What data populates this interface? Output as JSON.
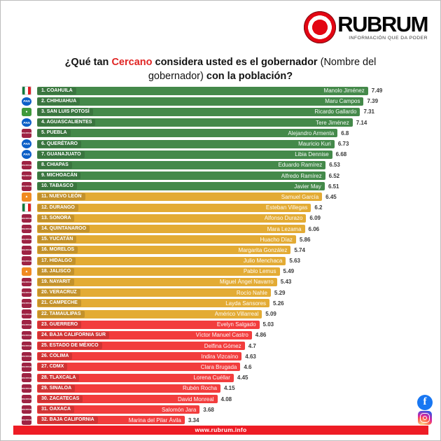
{
  "header": {
    "brand": "RUBRUM",
    "tagline": "INFORMACIÓN QUE DA PODER",
    "title_parts": {
      "q1": "¿Qué tan",
      "highlight": "Cercano",
      "q2": "considera usted es el gobernador",
      "paren": "(Nombre del gobernador)",
      "q3": "con la población?"
    }
  },
  "chart_data": {
    "type": "bar",
    "orientation": "horizontal",
    "title": "¿Qué tan Cercano considera usted es el gobernador (Nombre del gobernador) con la población?",
    "scale": [
      0,
      8
    ],
    "tier_colors": {
      "green": "#44894a",
      "yellow": "#e3ab34",
      "red": "#f23d3d"
    },
    "rows": [
      {
        "rank": 1,
        "state": "COAHUILA",
        "governor": "Manolo Jiménez",
        "score": "7.49",
        "party": "pri",
        "tier": "green"
      },
      {
        "rank": 2,
        "state": "CHIHUAHUA",
        "governor": "Maru Campos",
        "score": "7.39",
        "party": "pan",
        "tier": "green"
      },
      {
        "rank": 3,
        "state": "SAN LUIS POTOSÍ",
        "governor": "Ricardo Gallardo",
        "score": "7.31",
        "party": "pvem",
        "tier": "green"
      },
      {
        "rank": 4,
        "state": "AGUASCALIENTES",
        "governor": "Tere Jiménez",
        "score": "7.14",
        "party": "pan",
        "tier": "green"
      },
      {
        "rank": 5,
        "state": "PUEBLA",
        "governor": "Alejandro Armenta",
        "score": "6.8",
        "party": "morena",
        "tier": "green"
      },
      {
        "rank": 6,
        "state": "QUERÉTARO",
        "governor": "Mauricio Kuri",
        "score": "6.73",
        "party": "pan",
        "tier": "green"
      },
      {
        "rank": 7,
        "state": "GUANAJUATO",
        "governor": "Libia Dennise",
        "score": "6.68",
        "party": "pan",
        "tier": "green"
      },
      {
        "rank": 8,
        "state": "CHIAPAS",
        "governor": "Eduardo Ramírez",
        "score": "6.53",
        "party": "morena",
        "tier": "green"
      },
      {
        "rank": 9,
        "state": "MICHOACÁN",
        "governor": "Alfredo Ramírez",
        "score": "6.52",
        "party": "morena",
        "tier": "green"
      },
      {
        "rank": 10,
        "state": "TABASCO",
        "governor": "Javier May",
        "score": "6.51",
        "party": "morena",
        "tier": "green"
      },
      {
        "rank": 11,
        "state": "NUEVO LEÓN",
        "governor": "Samuel García",
        "score": "6.45",
        "party": "mc",
        "tier": "yellow"
      },
      {
        "rank": 12,
        "state": "DURANGO",
        "governor": "Esteban Villegas",
        "score": "6.2",
        "party": "pri",
        "tier": "yellow"
      },
      {
        "rank": 13,
        "state": "SONORA",
        "governor": "Alfonso Durazo",
        "score": "6.09",
        "party": "morena",
        "tier": "yellow"
      },
      {
        "rank": 14,
        "state": "QUINTANAROO",
        "governor": "Mara Lezama",
        "score": "6.06",
        "party": "morena",
        "tier": "yellow"
      },
      {
        "rank": 15,
        "state": "YUCATÁN",
        "governor": "Huacho Díaz",
        "score": "5.86",
        "party": "morena",
        "tier": "yellow"
      },
      {
        "rank": 16,
        "state": "MORELOS",
        "governor": "Margarita González",
        "score": "5.74",
        "party": "morena",
        "tier": "yellow"
      },
      {
        "rank": 17,
        "state": "HIDALGO",
        "governor": "Julio Menchaca",
        "score": "5.63",
        "party": "morena",
        "tier": "yellow"
      },
      {
        "rank": 18,
        "state": "JALISCO",
        "governor": "Pablo Lemus",
        "score": "5.49",
        "party": "mc",
        "tier": "yellow"
      },
      {
        "rank": 19,
        "state": "NAYARIT",
        "governor": "Miguel Ángel Navarro",
        "score": "5.43",
        "party": "morena",
        "tier": "yellow"
      },
      {
        "rank": 20,
        "state": "VERACRUZ",
        "governor": "Rocío Nahle",
        "score": "5.29",
        "party": "morena",
        "tier": "yellow"
      },
      {
        "rank": 21,
        "state": "CAMPECHE",
        "governor": "Layda Sansores",
        "score": "5.26",
        "party": "morena",
        "tier": "yellow"
      },
      {
        "rank": 22,
        "state": "TAMAULIPAS",
        "governor": "Américo Villarreal",
        "score": "5.09",
        "party": "morena",
        "tier": "yellow"
      },
      {
        "rank": 23,
        "state": "GUERRERO",
        "governor": "Evelyn Salgado",
        "score": "5.03",
        "party": "morena",
        "tier": "red"
      },
      {
        "rank": 24,
        "state": "BAJA CALIFORNIA SUR",
        "governor": "Víctor Manuel Castro",
        "score": "4.86",
        "party": "morena",
        "tier": "red"
      },
      {
        "rank": 25,
        "state": "ESTADO DE MÉXICO",
        "governor": "Delfina Gómez",
        "score": "4.7",
        "party": "morena",
        "tier": "red"
      },
      {
        "rank": 26,
        "state": "COLIMA",
        "governor": "Indira Vizcaíno",
        "score": "4.63",
        "party": "morena",
        "tier": "red"
      },
      {
        "rank": 27,
        "state": "CDMX",
        "governor": "Clara Brugada",
        "score": "4.6",
        "party": "morena",
        "tier": "red"
      },
      {
        "rank": 28,
        "state": "TLAXCALA",
        "governor": "Lorena Cuéllar",
        "score": "4.45",
        "party": "morena",
        "tier": "red"
      },
      {
        "rank": 29,
        "state": "SINALOA",
        "governor": "Rubén Rocha",
        "score": "4.15",
        "party": "morena",
        "tier": "red"
      },
      {
        "rank": 30,
        "state": "ZACATECAS",
        "governor": "David Monreal",
        "score": "4.08",
        "party": "morena",
        "tier": "red"
      },
      {
        "rank": 31,
        "state": "OAXACA",
        "governor": "Salomón Jara",
        "score": "3.68",
        "party": "morena",
        "tier": "red"
      },
      {
        "rank": 32,
        "state": "BAJA CALIFORNIA",
        "governor": "Marina del Pilar Ávila",
        "score": "3.34",
        "party": "morena",
        "tier": "red"
      }
    ]
  },
  "footer": {
    "url": "www.rubrum.info"
  },
  "social": {
    "facebook": "f",
    "instagram": ""
  }
}
